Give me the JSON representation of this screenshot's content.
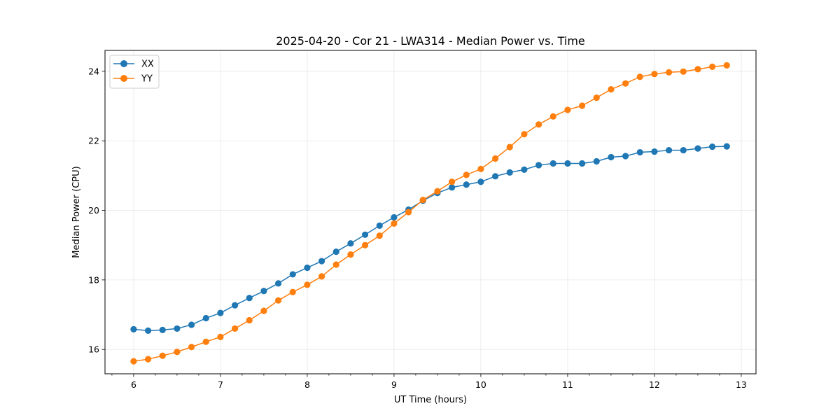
{
  "chart_data": {
    "type": "line",
    "title": "2025-04-20 - Cor 21 - LWA314 - Median Power vs. Time",
    "xlabel": "UT Time (hours)",
    "ylabel": "Median Power (CPU)",
    "xlim": [
      5.67,
      13.17
    ],
    "ylim": [
      15.3,
      24.6
    ],
    "xticks": [
      6,
      7,
      8,
      9,
      10,
      11,
      12,
      13
    ],
    "yticks": [
      16,
      18,
      20,
      22,
      24
    ],
    "xtick_labels": [
      "6",
      "7",
      "8",
      "9",
      "10",
      "11",
      "12",
      "13"
    ],
    "ytick_labels": [
      "16",
      "18",
      "20",
      "22",
      "24"
    ],
    "x_minor_step": 0.25,
    "grid": true,
    "legend_position": "upper-left",
    "x": [
      6.0,
      6.1667,
      6.3333,
      6.5,
      6.6667,
      6.8333,
      7.0,
      7.1667,
      7.3333,
      7.5,
      7.6667,
      7.8333,
      8.0,
      8.1667,
      8.3333,
      8.5,
      8.6667,
      8.8333,
      9.0,
      9.1667,
      9.3333,
      9.5,
      9.6667,
      9.8333,
      10.0,
      10.1667,
      10.3333,
      10.5,
      10.6667,
      10.8333,
      11.0,
      11.1667,
      11.3333,
      11.5,
      11.6667,
      11.8333,
      12.0,
      12.1667,
      12.3333,
      12.5,
      12.6667,
      12.8333
    ],
    "series": [
      {
        "name": "XX",
        "color": "#1f77b4",
        "values": [
          16.58,
          16.54,
          16.56,
          16.6,
          16.71,
          16.9,
          17.05,
          17.27,
          17.48,
          17.68,
          17.9,
          18.16,
          18.35,
          18.54,
          18.81,
          19.05,
          19.3,
          19.56,
          19.8,
          20.02,
          20.28,
          20.5,
          20.66,
          20.74,
          20.82,
          20.98,
          21.09,
          21.17,
          21.3,
          21.35,
          21.35,
          21.35,
          21.41,
          21.53,
          21.56,
          21.67,
          21.69,
          21.73,
          21.73,
          21.78,
          21.83,
          21.84
        ]
      },
      {
        "name": "YY",
        "color": "#ff7f0e",
        "values": [
          15.66,
          15.72,
          15.82,
          15.93,
          16.07,
          16.22,
          16.36,
          16.6,
          16.84,
          17.11,
          17.41,
          17.65,
          17.86,
          18.1,
          18.44,
          18.73,
          19.0,
          19.27,
          19.62,
          19.95,
          20.3,
          20.55,
          20.82,
          21.02,
          21.19,
          21.49,
          21.82,
          22.19,
          22.47,
          22.7,
          22.89,
          23.01,
          23.24,
          23.48,
          23.65,
          23.84,
          23.92,
          23.97,
          23.99,
          24.06,
          24.13,
          24.17
        ]
      }
    ]
  }
}
